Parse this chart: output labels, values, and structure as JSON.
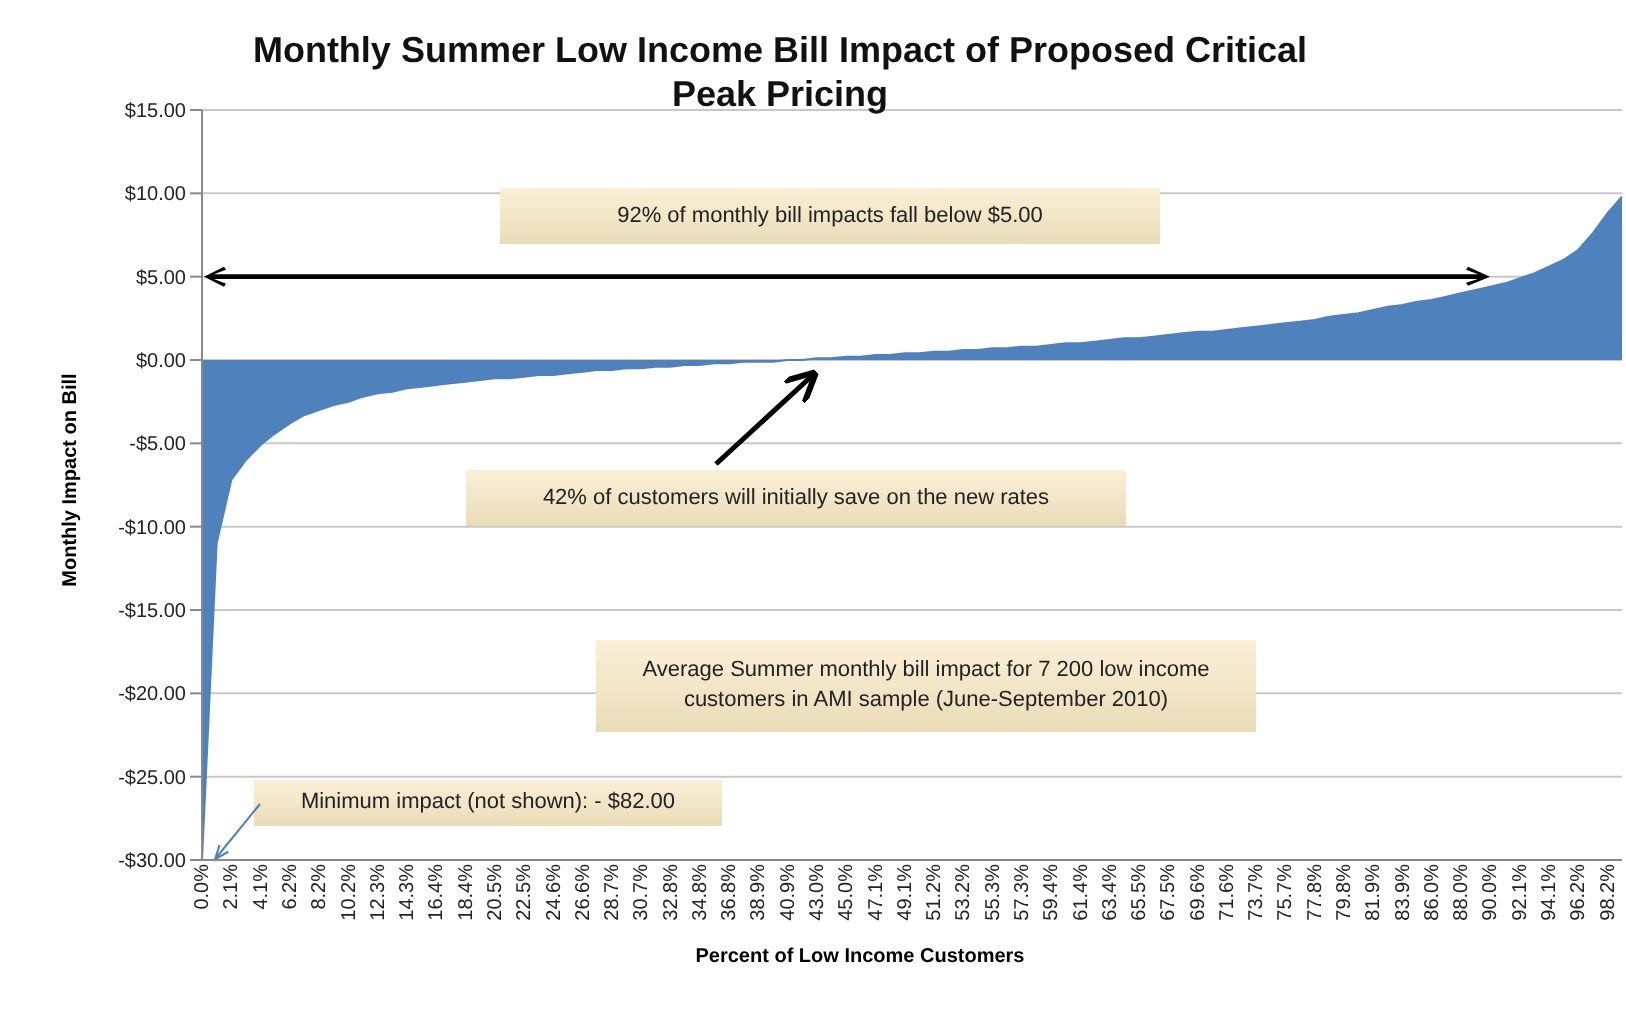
{
  "chart_data": {
    "type": "area",
    "title": "Monthly Summer Low Income Bill Impact of Proposed Critical Peak Pricing",
    "xlabel": "Percent of Low Income Customers",
    "ylabel": "Monthly Impact on Bill",
    "categories": [
      "0.0%",
      null,
      "2.1%",
      null,
      "4.1%",
      null,
      "6.2%",
      null,
      "8.2%",
      null,
      "10.2%",
      null,
      "12.3%",
      null,
      "14.3%",
      null,
      "16.4%",
      null,
      "18.4%",
      null,
      "20.5%",
      null,
      "22.5%",
      null,
      "24.6%",
      null,
      "26.6%",
      null,
      "28.7%",
      null,
      "30.7%",
      null,
      "32.8%",
      null,
      "34.8%",
      null,
      "36.8%",
      null,
      "38.9%",
      null,
      "40.9%",
      null,
      "43.0%",
      null,
      "45.0%",
      null,
      "47.1%",
      null,
      "49.1%",
      null,
      "51.2%",
      null,
      "53.2%",
      null,
      "55.3%",
      null,
      "57.3%",
      null,
      "59.4%",
      null,
      "61.4%",
      null,
      "63.4%",
      null,
      "65.5%",
      null,
      "67.5%",
      null,
      "69.6%",
      null,
      "71.6%",
      null,
      "73.7%",
      null,
      "75.7%",
      null,
      "77.8%",
      null,
      "79.8%",
      null,
      "81.9%",
      null,
      "83.9%",
      null,
      "86.0%",
      null,
      "88.0%",
      null,
      "90.0%",
      null,
      "92.1%",
      null,
      "94.1%",
      null,
      "96.2%",
      null,
      "98.2%",
      null
    ],
    "series": [
      {
        "color": "#4f81bd",
        "values": [
          -30,
          -11,
          -7.2,
          -6.0,
          -5.1,
          -4.4,
          -3.8,
          -3.3,
          -3.0,
          -2.7,
          -2.5,
          -2.2,
          -2.0,
          -1.9,
          -1.7,
          -1.6,
          -1.5,
          -1.4,
          -1.3,
          -1.2,
          -1.1,
          -1.1,
          -1.0,
          -0.9,
          -0.9,
          -0.8,
          -0.7,
          -0.6,
          -0.6,
          -0.5,
          -0.5,
          -0.4,
          -0.4,
          -0.3,
          -0.3,
          -0.2,
          -0.2,
          -0.1,
          -0.1,
          -0.1,
          0,
          0,
          0.1,
          0.1,
          0.2,
          0.2,
          0.3,
          0.3,
          0.4,
          0.4,
          0.5,
          0.5,
          0.6,
          0.6,
          0.7,
          0.7,
          0.8,
          0.8,
          0.9,
          1.0,
          1.0,
          1.1,
          1.2,
          1.3,
          1.3,
          1.4,
          1.5,
          1.6,
          1.7,
          1.7,
          1.8,
          1.9,
          2.0,
          2.1,
          2.2,
          2.3,
          2.4,
          2.6,
          2.7,
          2.8,
          3.0,
          3.2,
          3.3,
          3.5,
          3.6,
          3.8,
          4.0,
          4.2,
          4.4,
          4.6,
          4.9,
          5.2,
          5.6,
          6.0,
          6.6,
          7.6,
          8.8,
          9.8
        ]
      }
    ],
    "ylim": [
      -30,
      15
    ],
    "yticks": [
      {
        "value": -30,
        "label": "-$30.00"
      },
      {
        "value": -25,
        "label": "-$25.00"
      },
      {
        "value": -20,
        "label": "-$20.00"
      },
      {
        "value": -15,
        "label": "-$15.00"
      },
      {
        "value": -10,
        "label": "-$10.00"
      },
      {
        "value": -5,
        "label": "-$5.00"
      },
      {
        "value": 0,
        "label": "$0.00"
      },
      {
        "value": 5,
        "label": "$5.00"
      },
      {
        "value": 10,
        "label": "$10.00"
      },
      {
        "value": 15,
        "label": "$15.00"
      }
    ],
    "grid": "y",
    "annotations": [
      "92% of monthly bill impacts fall below $5.00",
      "42% of customers will initially save on the new rates",
      "Average Summer monthly bill impact for  7 200 low income customers in AMI sample (June-September 2010)",
      "Minimum impact (not shown): - $82.00"
    ]
  }
}
